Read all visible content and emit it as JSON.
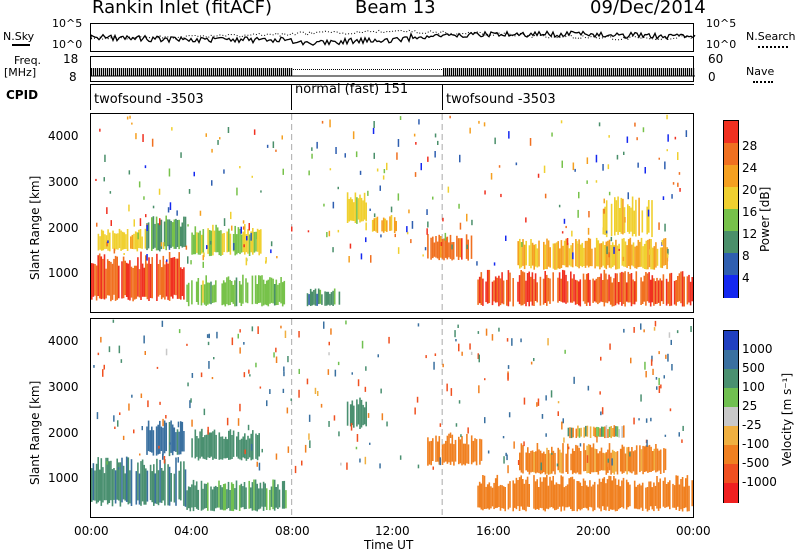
{
  "header": {
    "title": "Rankin Inlet (fitACF)",
    "beam": "Beam 13",
    "date": "09/Dec/2014"
  },
  "top_panels": {
    "noise_left_label": "N.Sky",
    "noise_right_label": "N.Search",
    "noise_ticks": [
      "10^5",
      "10^0"
    ],
    "freq_label": "Freq.",
    "freq_unit": "[MHz]",
    "freq_ticks": [
      "18",
      "8"
    ],
    "nave_label": "Nave",
    "nave_ticks": [
      "60",
      "0"
    ],
    "cpid_label": "CPID",
    "cpid_segments": [
      {
        "name": "twofsound -3503",
        "start_h": 0,
        "end_h": 8
      },
      {
        "name": "normal (fast) 151",
        "start_h": 8,
        "end_h": 14
      },
      {
        "name": "twofsound -3503",
        "start_h": 14,
        "end_h": 24
      }
    ]
  },
  "axes": {
    "ylabel": "Slant Range [km]",
    "xlabel": "Time UT",
    "y_ticks": [
      "1000",
      "2000",
      "3000",
      "4000"
    ],
    "x_ticks": [
      "00:00",
      "04:00",
      "08:00",
      "12:00",
      "16:00",
      "20:00",
      "00:00"
    ]
  },
  "power_colorbar": {
    "label": "Power [dB]",
    "ticks": [
      "4",
      "8",
      "12",
      "16",
      "20",
      "24",
      "28"
    ],
    "colors": [
      "#1428f0",
      "#2f5fb0",
      "#4a8f6a",
      "#77c24a",
      "#f0d030",
      "#f5a020",
      "#f07020",
      "#f03020"
    ]
  },
  "velocity_colorbar": {
    "label": "Velocity [m s⁻¹]",
    "ticks": [
      "1000",
      "500",
      "100",
      "25",
      "-25",
      "-100",
      "-500",
      "-1000"
    ],
    "colors": [
      "#2040c0",
      "#3a70a0",
      "#4a9070",
      "#70c050",
      "#c8c8c8",
      "#f0b040",
      "#f08020",
      "#f05020",
      "#f02020"
    ]
  },
  "chart_data": [
    {
      "type": "heatmap",
      "title": "Power",
      "xlabel": "Time UT",
      "ylabel": "Slant Range [km]",
      "colorbar_label": "Power [dB]",
      "x_range_h": [
        0,
        24
      ],
      "ylim": [
        180,
        4500
      ],
      "zlim": [
        0,
        30
      ],
      "regions": [
        {
          "t0": 0.0,
          "t1": 3.8,
          "r0": 400,
          "r1": 1500,
          "value": 28
        },
        {
          "t0": 0.2,
          "t1": 2.2,
          "r0": 1500,
          "r1": 2000,
          "value": 18
        },
        {
          "t0": 2.2,
          "t1": 3.8,
          "r0": 1500,
          "r1": 2300,
          "value": 12
        },
        {
          "t0": 4.0,
          "t1": 6.8,
          "r0": 1400,
          "r1": 2100,
          "value": 16
        },
        {
          "t0": 3.8,
          "t1": 7.8,
          "r0": 300,
          "r1": 1000,
          "value": 14
        },
        {
          "t0": 8.6,
          "t1": 10.0,
          "r0": 300,
          "r1": 700,
          "value": 10
        },
        {
          "t0": 10.2,
          "t1": 11.0,
          "r0": 2100,
          "r1": 2800,
          "value": 18
        },
        {
          "t0": 11.2,
          "t1": 12.2,
          "r0": 1900,
          "r1": 2300,
          "value": 20
        },
        {
          "t0": 13.4,
          "t1": 15.2,
          "r0": 1300,
          "r1": 1900,
          "value": 26
        },
        {
          "t0": 15.4,
          "t1": 24.0,
          "r0": 300,
          "r1": 1100,
          "value": 28
        },
        {
          "t0": 17.0,
          "t1": 23.0,
          "r0": 1100,
          "r1": 1800,
          "value": 20
        },
        {
          "t0": 20.4,
          "t1": 22.4,
          "r0": 1800,
          "r1": 2700,
          "value": 18
        }
      ]
    },
    {
      "type": "heatmap",
      "title": "Velocity",
      "xlabel": "Time UT",
      "ylabel": "Slant Range [km]",
      "colorbar_label": "Velocity [m s⁻¹]",
      "x_range_h": [
        0,
        24
      ],
      "ylim": [
        180,
        4500
      ],
      "zlim": [
        -1000,
        1000
      ],
      "regions": [
        {
          "t0": 0.0,
          "t1": 3.8,
          "r0": 400,
          "r1": 1500,
          "value": 400
        },
        {
          "t0": 2.2,
          "t1": 3.8,
          "r0": 1500,
          "r1": 2300,
          "value": 600
        },
        {
          "t0": 4.0,
          "t1": 6.8,
          "r0": 1400,
          "r1": 2100,
          "value": 300
        },
        {
          "t0": 3.8,
          "t1": 7.8,
          "r0": 300,
          "r1": 1000,
          "value": 200
        },
        {
          "t0": 10.2,
          "t1": 11.0,
          "r0": 2100,
          "r1": 2800,
          "value": 300
        },
        {
          "t0": 13.4,
          "t1": 15.6,
          "r0": 1300,
          "r1": 2000,
          "value": -300
        },
        {
          "t0": 15.4,
          "t1": 24.0,
          "r0": 300,
          "r1": 1100,
          "value": -300
        },
        {
          "t0": 17.0,
          "t1": 23.0,
          "r0": 1100,
          "r1": 1800,
          "value": -200
        },
        {
          "t0": 19.0,
          "t1": 21.4,
          "r0": 1900,
          "r1": 2200,
          "value": 0
        }
      ]
    }
  ]
}
